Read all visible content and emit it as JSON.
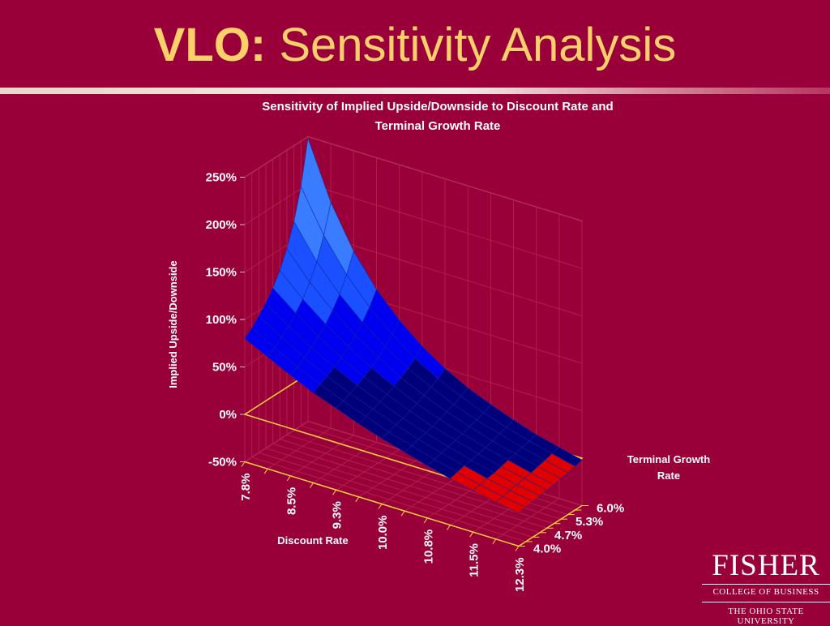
{
  "slide": {
    "title_bold": "VLO:",
    "title_rest": " Sensitivity Analysis"
  },
  "logo": {
    "name": "FISHER",
    "line1": "COLLEGE OF BUSINESS",
    "line2": "THE OHIO STATE UNIVERSITY"
  },
  "chart_data": {
    "type": "surface",
    "title": "Sensitivity of Implied Upside/Downside to Discount Rate and Terminal Growth Rate",
    "title_line1": "Sensitivity of Implied Upside/Downside to Discount Rate and",
    "title_line2": "Terminal Growth Rate",
    "zlabel": "Implied Upside/Downside",
    "xlabel": "Discount Rate",
    "ylabel": "Terminal Growth Rate",
    "ylabel_line1": "Terminal Growth",
    "ylabel_line2": "Rate",
    "x_ticks": [
      "7.8%",
      "8.5%",
      "9.3%",
      "10.0%",
      "10.8%",
      "11.5%",
      "12.3%"
    ],
    "y_ticks": [
      "4.0%",
      "4.7%",
      "5.3%",
      "6.0%"
    ],
    "z_ticks": [
      "-50%",
      "0%",
      "50%",
      "100%",
      "150%",
      "200%",
      "250%"
    ],
    "zlim": [
      -0.5,
      2.5
    ],
    "x_values": [
      "7.8%",
      "8.1%",
      "8.5%",
      "8.9%",
      "9.3%",
      "9.6%",
      "10.0%",
      "10.4%",
      "10.8%",
      "11.1%",
      "11.5%",
      "11.9%",
      "12.3%"
    ],
    "y_values": [
      "4.0%",
      "4.2%",
      "4.4%",
      "4.7%",
      "4.9%",
      "5.1%",
      "5.3%",
      "5.6%",
      "5.8%",
      "6.0%"
    ],
    "z_values": [
      [
        0.8,
        0.86,
        0.94,
        1.03,
        1.14,
        1.28,
        1.46,
        1.7,
        2.02,
        2.48
      ],
      [
        0.68,
        0.73,
        0.79,
        0.86,
        0.95,
        1.05,
        1.18,
        1.35,
        1.58,
        1.88
      ],
      [
        0.56,
        0.6,
        0.65,
        0.71,
        0.78,
        0.86,
        0.96,
        1.08,
        1.24,
        1.44
      ],
      [
        0.45,
        0.49,
        0.53,
        0.58,
        0.63,
        0.7,
        0.77,
        0.86,
        0.97,
        1.11
      ],
      [
        0.36,
        0.39,
        0.42,
        0.46,
        0.5,
        0.55,
        0.61,
        0.68,
        0.76,
        0.86
      ],
      [
        0.27,
        0.3,
        0.33,
        0.36,
        0.39,
        0.43,
        0.47,
        0.52,
        0.58,
        0.66
      ],
      [
        0.19,
        0.21,
        0.24,
        0.26,
        0.29,
        0.32,
        0.36,
        0.4,
        0.44,
        0.5
      ],
      [
        0.12,
        0.14,
        0.16,
        0.18,
        0.2,
        0.23,
        0.26,
        0.29,
        0.33,
        0.37
      ],
      [
        0.05,
        0.07,
        0.09,
        0.11,
        0.13,
        0.15,
        0.18,
        0.2,
        0.23,
        0.27
      ],
      [
        -0.01,
        0.01,
        0.03,
        0.04,
        0.06,
        0.08,
        0.1,
        0.13,
        0.15,
        0.18
      ],
      [
        -0.06,
        -0.05,
        -0.03,
        -0.02,
        0.0,
        0.02,
        0.04,
        0.06,
        0.08,
        0.1
      ],
      [
        -0.11,
        -0.1,
        -0.08,
        -0.07,
        -0.05,
        -0.04,
        -0.02,
        0.0,
        0.02,
        0.04
      ],
      [
        -0.15,
        -0.14,
        -0.13,
        -0.11,
        -0.1,
        -0.09,
        -0.07,
        -0.06,
        -0.04,
        -0.02
      ]
    ],
    "band_size": 0.5,
    "colors": {
      "negative": "#e00000",
      "band_0_50": "#00007a",
      "band_50_100": "#0000f0",
      "band_100_150": "#1a50ff",
      "band_150_200": "#3a7cff",
      "band_200_250": "#8fd0ff",
      "band_250_plus": "#f4f4ff",
      "floor": "#ffd23a",
      "grid": "#b02048"
    }
  }
}
